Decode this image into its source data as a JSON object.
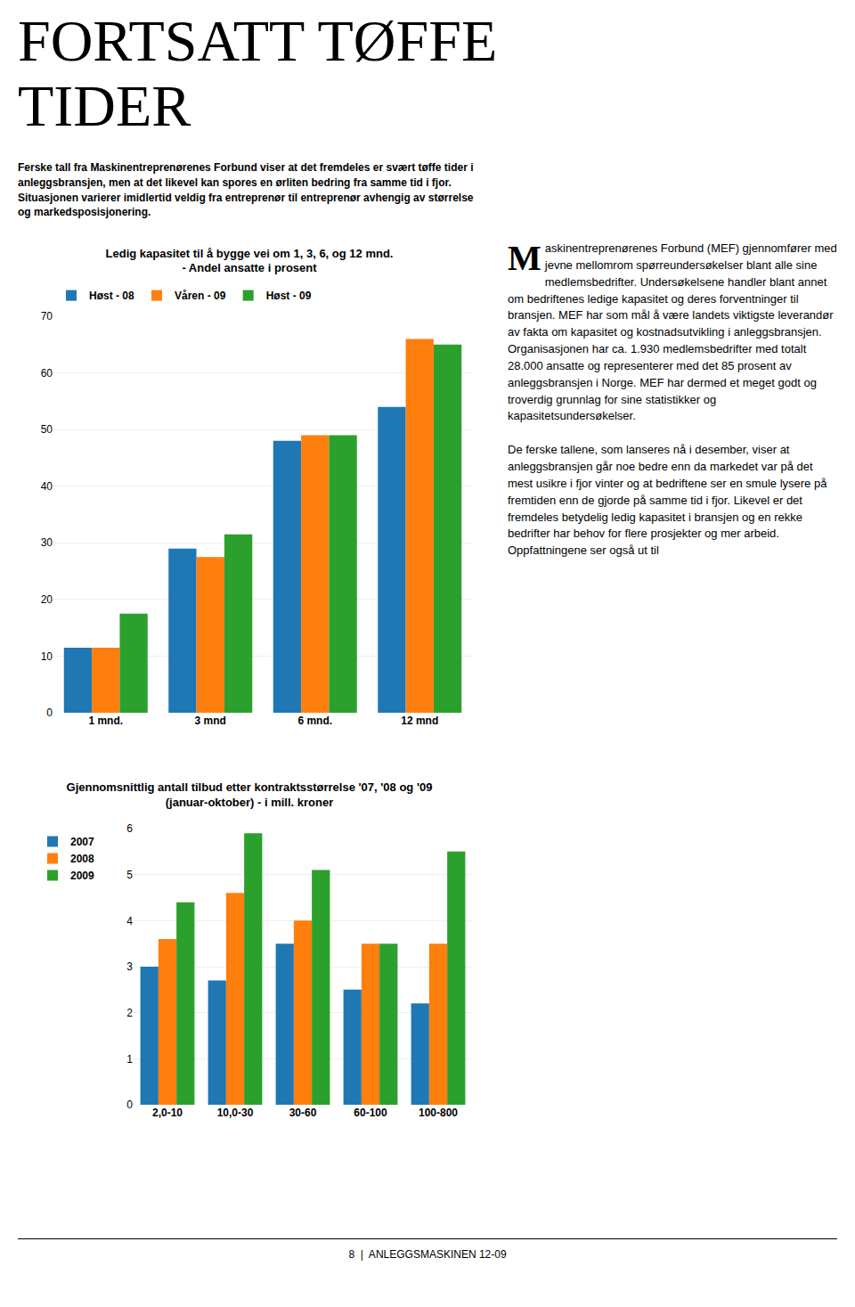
{
  "title": "FORTSATT TØFFE\nTIDER",
  "subtitle": "Ferske tall fra Maskinentreprenørenes Forbund viser at det fremdeles er svært tøffe tider i anleggsbransjen, men at det likevel kan spores en ørliten bedring fra samme tid i fjor. Situasjonen varierer imidlertid veldig fra entreprenør til entreprenør avhengig av størrelse og markedsposisjonering.",
  "annotations": [
    "M",
    "askinentreprenørenes Forbund (MEF) gjennomfører med jevne mellomrom spørreundersøkelser blant alle sine medlemsbedrifter. Undersøkelsene handler blant annet om bedriftenes ledige kapasitet og deres forventninger til bransjen. MEF har som mål å være landets viktigste leverandør av fakta om kapasitet og kostnadsutvikling i anleggsbransjen. Organisasjonen har ca. 1.930 medlemsbedrifter med totalt 28.000 ansatte og representerer med det 85 prosent av anleggsbransjen i Norge. MEF har dermed et meget godt og troverdig grunnlag for sine statistikker og kapasitetsundersøkelser.\n\nDe ferske tallene, som lanseres nå i desember, viser at anleggsbransjen går noe bedre enn da markedet var på det mest usikre i fjor vinter og at bedriftene ser en smule lysere på fremtiden enn de gjorde på samme tid i fjor. Likevel er det fremdeles betydelig ledig kapasitet i bransjen og en rekke bedrifter har behov for flere prosjekter og mer arbeid. Oppfattningene ser også ut til",
    "8  |  ANLEGGSMASKINEN 12-09"
  ],
  "chart_data": [
    {
      "type": "bar",
      "title": "Ledig kapasitet til å bygge vei om 1, 3, 6, og 12 mnd.\n- Andel ansatte i prosent",
      "categories": [
        "1 mnd.",
        "3 mnd",
        "6 mnd.",
        "12 mnd"
      ],
      "series": [
        {
          "name": "Høst - 08",
          "values": [
            11.5,
            29,
            48,
            54
          ]
        },
        {
          "name": "Våren - 09",
          "values": [
            11.5,
            27.5,
            49,
            66
          ]
        },
        {
          "name": "Høst - 09",
          "values": [
            17.5,
            31.5,
            49,
            65
          ]
        }
      ],
      "ylim": [
        0,
        70
      ],
      "yticks": [
        0,
        10,
        20,
        30,
        40,
        50,
        60,
        70
      ],
      "grid": true,
      "legend": "top"
    },
    {
      "type": "bar",
      "title": "Gjennomsnittlig antall tilbud etter kontraktsstørrelse '07, '08 og '09\n(januar-oktober) - i mill. kroner",
      "categories": [
        "2,0-10",
        "10,0-30",
        "30-60",
        "60-100",
        "100-800"
      ],
      "series": [
        {
          "name": "2007",
          "values": [
            3.0,
            2.7,
            3.5,
            2.5,
            2.2
          ]
        },
        {
          "name": "2008",
          "values": [
            3.6,
            4.6,
            4.0,
            3.5,
            3.5
          ]
        },
        {
          "name": "2009",
          "values": [
            4.4,
            5.9,
            5.1,
            3.5,
            5.5
          ]
        }
      ],
      "ylim": [
        0,
        6
      ],
      "yticks": [
        0,
        1,
        2,
        3,
        4,
        5,
        6
      ],
      "grid": true,
      "legend": "left"
    }
  ]
}
